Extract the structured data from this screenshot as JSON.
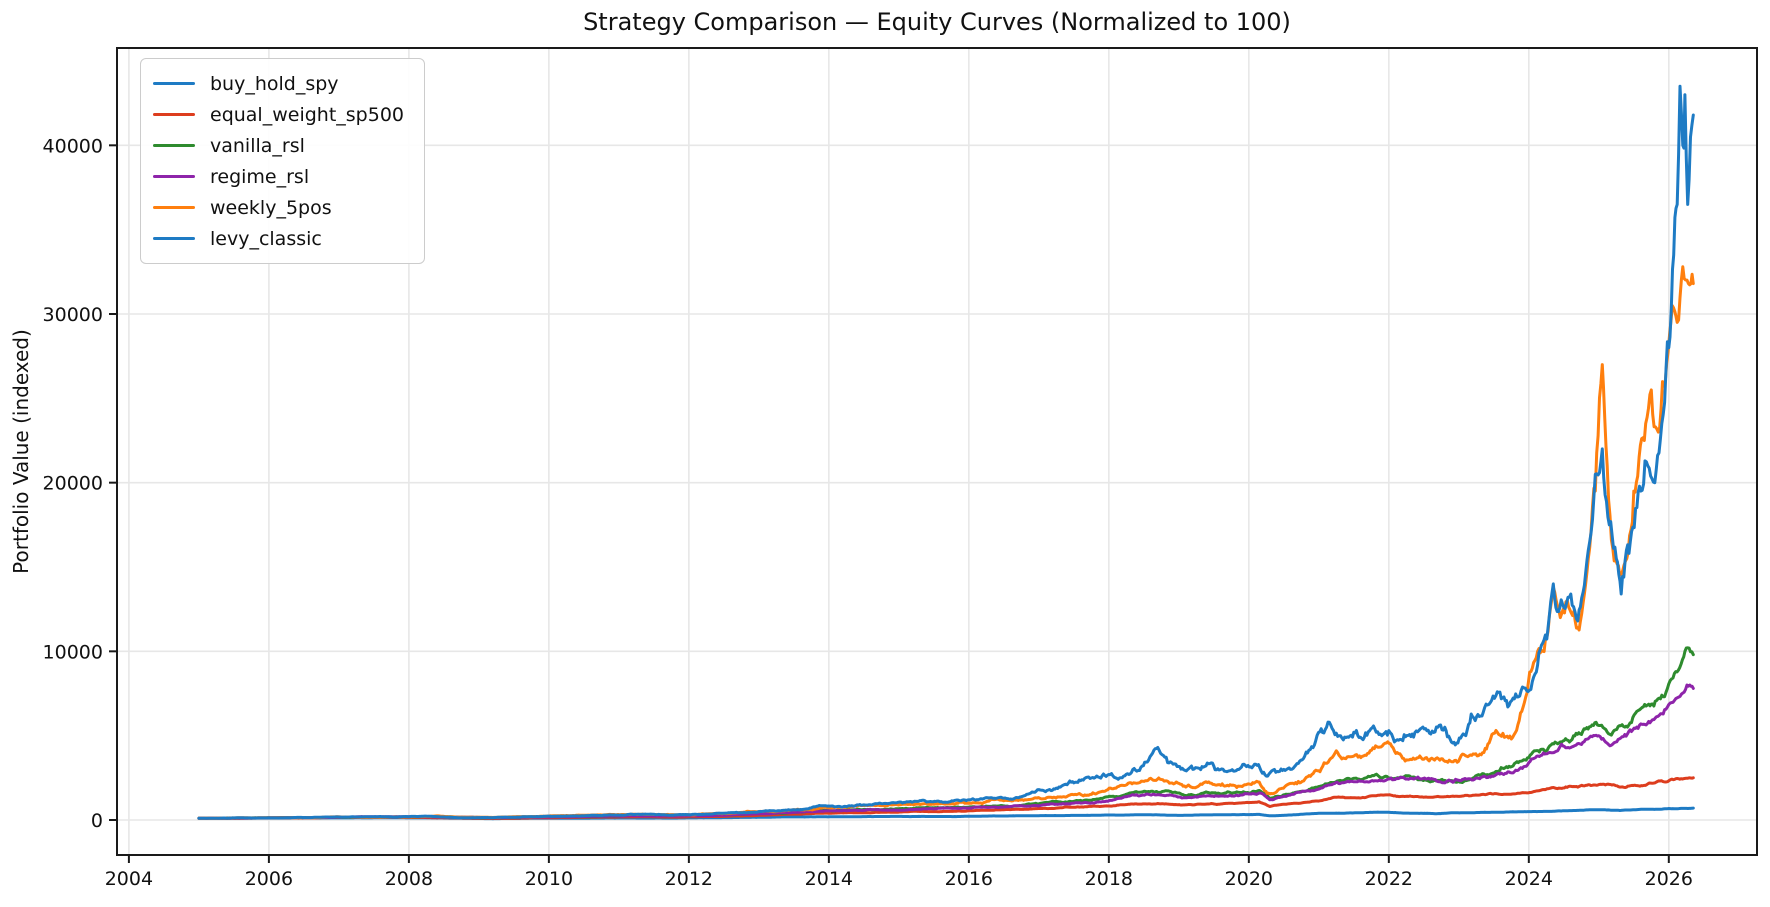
{
  "chart_data": {
    "type": "line",
    "title": "Strategy Comparison — Equity Curves (Normalized to 100)",
    "xlabel": "",
    "ylabel": "Portfolio Value (indexed)",
    "x_ticks": [
      2004,
      2006,
      2008,
      2010,
      2012,
      2014,
      2016,
      2018,
      2020,
      2022,
      2024,
      2026
    ],
    "y_ticks": [
      0,
      10000,
      20000,
      30000,
      40000
    ],
    "xlim": [
      2003.83,
      2027.26
    ],
    "ylim": [
      -2075,
      45770
    ],
    "grid": true,
    "grid_color": "#e7e7e7",
    "spine_color": "#1a1a1a",
    "legend_position": "upper left",
    "normalized_start_value": 100,
    "series": [
      {
        "name": "buy_hold_spy",
        "color": "#1e7bc4",
        "jitter": 0.008,
        "points": [
          [
            2005.0,
            100
          ],
          [
            2005.5,
            104
          ],
          [
            2006,
            112
          ],
          [
            2006.5,
            116
          ],
          [
            2007,
            126
          ],
          [
            2007.8,
            136
          ],
          [
            2008.5,
            115
          ],
          [
            2009.2,
            80
          ],
          [
            2009.8,
            100
          ],
          [
            2010.5,
            106
          ],
          [
            2011.0,
            118
          ],
          [
            2011.7,
            110
          ],
          [
            2012,
            124
          ],
          [
            2013,
            160
          ],
          [
            2014,
            190
          ],
          [
            2015,
            212
          ],
          [
            2015.8,
            205
          ],
          [
            2016,
            218
          ],
          [
            2017,
            255
          ],
          [
            2018,
            295
          ],
          [
            2018.7,
            305
          ],
          [
            2019.0,
            275
          ],
          [
            2019.8,
            320
          ],
          [
            2020.15,
            330
          ],
          [
            2020.3,
            250
          ],
          [
            2021,
            395
          ],
          [
            2021.9,
            465
          ],
          [
            2022.7,
            380
          ],
          [
            2023.2,
            430
          ],
          [
            2023.6,
            460
          ],
          [
            2024,
            500
          ],
          [
            2024.5,
            545
          ],
          [
            2025,
            610
          ],
          [
            2025.3,
            565
          ],
          [
            2025.7,
            640
          ],
          [
            2026,
            680
          ],
          [
            2026.35,
            705
          ]
        ]
      },
      {
        "name": "equal_weight_sp500",
        "color": "#dd3d1e",
        "jitter": 0.01,
        "points": [
          [
            2005,
            100
          ],
          [
            2006,
            124
          ],
          [
            2007,
            158
          ],
          [
            2007.8,
            165
          ],
          [
            2008.6,
            130
          ],
          [
            2009.2,
            88
          ],
          [
            2009.8,
            130
          ],
          [
            2010.5,
            155
          ],
          [
            2011.2,
            185
          ],
          [
            2011.8,
            170
          ],
          [
            2012.5,
            215
          ],
          [
            2013,
            280
          ],
          [
            2013.9,
            400
          ],
          [
            2014.8,
            460
          ],
          [
            2015.5,
            500
          ],
          [
            2016,
            545
          ],
          [
            2016.8,
            640
          ],
          [
            2017.5,
            760
          ],
          [
            2018.2,
            900
          ],
          [
            2018.7,
            980
          ],
          [
            2019.1,
            900
          ],
          [
            2019.6,
            950
          ],
          [
            2020.15,
            1080
          ],
          [
            2020.3,
            800
          ],
          [
            2020.9,
            1100
          ],
          [
            2021.3,
            1350
          ],
          [
            2021.9,
            1480
          ],
          [
            2022.3,
            1420
          ],
          [
            2022.8,
            1380
          ],
          [
            2023.3,
            1480
          ],
          [
            2023.8,
            1550
          ],
          [
            2024.2,
            1800
          ],
          [
            2024.7,
            1950
          ],
          [
            2025.0,
            2100
          ],
          [
            2025.3,
            1950
          ],
          [
            2025.8,
            2200
          ],
          [
            2026.1,
            2450
          ],
          [
            2026.35,
            2500
          ]
        ]
      },
      {
        "name": "vanilla_rsl",
        "color": "#2e8b2e",
        "jitter": 0.016,
        "points": [
          [
            2005,
            100
          ],
          [
            2006,
            130
          ],
          [
            2007,
            175
          ],
          [
            2008.3,
            200
          ],
          [
            2009.2,
            125
          ],
          [
            2010,
            185
          ],
          [
            2011.2,
            270
          ],
          [
            2011.8,
            245
          ],
          [
            2012.5,
            300
          ],
          [
            2013,
            380
          ],
          [
            2013.9,
            560
          ],
          [
            2014.8,
            640
          ],
          [
            2015.5,
            720
          ],
          [
            2016,
            760
          ],
          [
            2016.8,
            900
          ],
          [
            2017.5,
            1100
          ],
          [
            2018.2,
            1450
          ],
          [
            2018.7,
            1650
          ],
          [
            2019.1,
            1450
          ],
          [
            2019.6,
            1550
          ],
          [
            2020.15,
            1750
          ],
          [
            2020.3,
            1280
          ],
          [
            2020.9,
            1900
          ],
          [
            2021.3,
            2350
          ],
          [
            2021.9,
            2500
          ],
          [
            2022.3,
            2600
          ],
          [
            2022.8,
            2350
          ],
          [
            2023.3,
            2650
          ],
          [
            2023.7,
            3100
          ],
          [
            2024.0,
            3700
          ],
          [
            2024.3,
            4400
          ],
          [
            2024.6,
            4700
          ],
          [
            2025.0,
            5600
          ],
          [
            2025.2,
            5200
          ],
          [
            2025.6,
            6600
          ],
          [
            2025.9,
            7400
          ],
          [
            2026.1,
            8800
          ],
          [
            2026.25,
            10200
          ],
          [
            2026.35,
            9800
          ]
        ]
      },
      {
        "name": "regime_rsl",
        "color": "#8e24aa",
        "jitter": 0.015,
        "points": [
          [
            2005,
            100
          ],
          [
            2006,
            128
          ],
          [
            2007,
            168
          ],
          [
            2008.3,
            195
          ],
          [
            2009.2,
            135
          ],
          [
            2010,
            180
          ],
          [
            2011.2,
            255
          ],
          [
            2011.8,
            235
          ],
          [
            2012.5,
            285
          ],
          [
            2013,
            360
          ],
          [
            2013.9,
            520
          ],
          [
            2014.8,
            590
          ],
          [
            2015.5,
            660
          ],
          [
            2016,
            700
          ],
          [
            2016.8,
            830
          ],
          [
            2017.5,
            1000
          ],
          [
            2018.2,
            1330
          ],
          [
            2018.7,
            1500
          ],
          [
            2019.1,
            1330
          ],
          [
            2019.6,
            1420
          ],
          [
            2020.15,
            1600
          ],
          [
            2020.3,
            1200
          ],
          [
            2020.9,
            1750
          ],
          [
            2021.3,
            2150
          ],
          [
            2021.9,
            2350
          ],
          [
            2022.3,
            2450
          ],
          [
            2022.8,
            2200
          ],
          [
            2023.3,
            2450
          ],
          [
            2023.7,
            2850
          ],
          [
            2024.0,
            3400
          ],
          [
            2024.3,
            4000
          ],
          [
            2024.6,
            4300
          ],
          [
            2025.0,
            5000
          ],
          [
            2025.2,
            4500
          ],
          [
            2025.6,
            5700
          ],
          [
            2025.9,
            6300
          ],
          [
            2026.1,
            7200
          ],
          [
            2026.3,
            8000
          ],
          [
            2026.35,
            7800
          ]
        ]
      },
      {
        "name": "weekly_5pos",
        "color": "#ff7f0e",
        "jitter": 0.022,
        "points": [
          [
            2005,
            100
          ],
          [
            2006,
            135
          ],
          [
            2007,
            190
          ],
          [
            2008.4,
            245
          ],
          [
            2009.2,
            150
          ],
          [
            2010,
            240
          ],
          [
            2011.2,
            340
          ],
          [
            2011.8,
            310
          ],
          [
            2012.5,
            390
          ],
          [
            2013,
            500
          ],
          [
            2013.9,
            720
          ],
          [
            2014.8,
            830
          ],
          [
            2015.5,
            930
          ],
          [
            2016,
            1000
          ],
          [
            2016.8,
            1200
          ],
          [
            2017.5,
            1500
          ],
          [
            2018.2,
            2050
          ],
          [
            2018.75,
            2400
          ],
          [
            2019.1,
            1950
          ],
          [
            2019.6,
            2050
          ],
          [
            2020.15,
            2250
          ],
          [
            2020.3,
            1550
          ],
          [
            2020.9,
            2700
          ],
          [
            2021.25,
            4100
          ],
          [
            2021.6,
            3700
          ],
          [
            2022.1,
            3950
          ],
          [
            2022.5,
            3600
          ],
          [
            2022.9,
            3450
          ],
          [
            2023.3,
            3900
          ],
          [
            2023.55,
            5200
          ],
          [
            2023.75,
            4800
          ],
          [
            2024.05,
            9000
          ],
          [
            2024.2,
            10000
          ],
          [
            2024.35,
            13800
          ],
          [
            2024.45,
            12000
          ],
          [
            2024.55,
            13000
          ],
          [
            2024.7,
            11400
          ],
          [
            2024.85,
            15500
          ],
          [
            2024.95,
            19500
          ],
          [
            2025.05,
            27000
          ],
          [
            2025.12,
            21000
          ],
          [
            2025.18,
            16600
          ],
          [
            2025.3,
            14500
          ],
          [
            2025.4,
            15500
          ],
          [
            2025.5,
            19500
          ],
          [
            2025.65,
            22500
          ],
          [
            2025.75,
            25500
          ],
          [
            2025.85,
            23000
          ],
          [
            2025.95,
            26000
          ],
          [
            2026.05,
            30500
          ],
          [
            2026.12,
            29500
          ],
          [
            2026.2,
            32800
          ],
          [
            2026.28,
            31800
          ],
          [
            2026.35,
            31800
          ]
        ]
      },
      {
        "name": "levy_classic",
        "color": "#1e7bc4",
        "jitter": 0.025,
        "points": [
          [
            2005,
            100
          ],
          [
            2006,
            130
          ],
          [
            2007,
            180
          ],
          [
            2008.3,
            220
          ],
          [
            2009.2,
            140
          ],
          [
            2010,
            230
          ],
          [
            2011.3,
            330
          ],
          [
            2011.8,
            300
          ],
          [
            2012.2,
            330
          ],
          [
            2013,
            500
          ],
          [
            2013.9,
            850
          ],
          [
            2014.5,
            900
          ],
          [
            2015.3,
            1150
          ],
          [
            2015.7,
            1050
          ],
          [
            2016,
            1200
          ],
          [
            2016.5,
            1300
          ],
          [
            2017,
            1800
          ],
          [
            2017.5,
            2200
          ],
          [
            2018,
            2700
          ],
          [
            2018.4,
            2900
          ],
          [
            2018.7,
            4300
          ],
          [
            2018.9,
            3400
          ],
          [
            2019.2,
            3000
          ],
          [
            2019.5,
            3200
          ],
          [
            2019.8,
            2900
          ],
          [
            2020.1,
            3300
          ],
          [
            2020.25,
            2600
          ],
          [
            2020.5,
            3000
          ],
          [
            2020.8,
            3800
          ],
          [
            2021.15,
            5800
          ],
          [
            2021.35,
            4750
          ],
          [
            2021.5,
            5200
          ],
          [
            2021.65,
            4900
          ],
          [
            2021.8,
            5400
          ],
          [
            2022.0,
            5300
          ],
          [
            2022.2,
            4700
          ],
          [
            2022.45,
            5400
          ],
          [
            2022.6,
            5100
          ],
          [
            2022.8,
            5500
          ],
          [
            2022.95,
            4450
          ],
          [
            2023.1,
            5000
          ],
          [
            2023.35,
            6400
          ],
          [
            2023.55,
            7600
          ],
          [
            2023.7,
            6700
          ],
          [
            2023.85,
            7300
          ],
          [
            2024.05,
            8200
          ],
          [
            2024.2,
            10500
          ],
          [
            2024.35,
            14000
          ],
          [
            2024.5,
            12600
          ],
          [
            2024.6,
            13400
          ],
          [
            2024.7,
            11800
          ],
          [
            2024.85,
            16000
          ],
          [
            2024.95,
            20500
          ],
          [
            2025.05,
            22000
          ],
          [
            2025.15,
            17500
          ],
          [
            2025.25,
            15500
          ],
          [
            2025.32,
            13400
          ],
          [
            2025.45,
            16500
          ],
          [
            2025.6,
            19500
          ],
          [
            2025.7,
            21000
          ],
          [
            2025.8,
            20000
          ],
          [
            2025.9,
            23500
          ],
          [
            2026.0,
            28000
          ],
          [
            2026.07,
            33500
          ],
          [
            2026.12,
            36500
          ],
          [
            2026.16,
            43500
          ],
          [
            2026.2,
            40000
          ],
          [
            2026.23,
            43000
          ],
          [
            2026.27,
            36500
          ],
          [
            2026.31,
            40500
          ],
          [
            2026.35,
            41800
          ]
        ]
      }
    ]
  }
}
